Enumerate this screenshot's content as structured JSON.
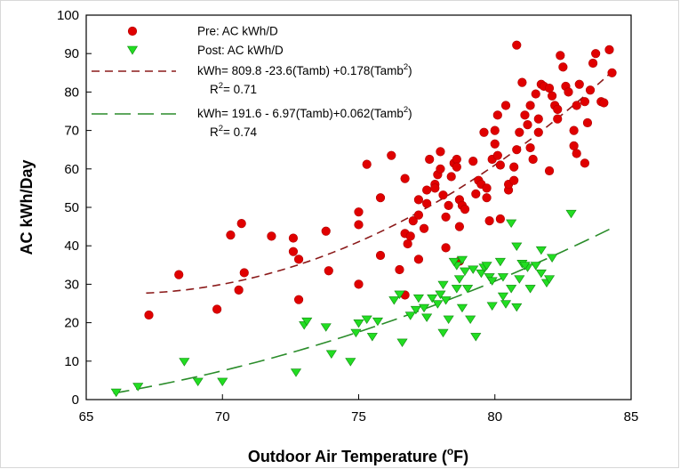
{
  "chart_data": {
    "type": "scatter",
    "title": "",
    "xlabel_text": "Outdoor Air Temperature (",
    "xlabel_sup": "o",
    "xlabel_tail": "F)",
    "ylabel": "AC kWh/Day",
    "xlim": [
      65,
      85
    ],
    "ylim": [
      0,
      100
    ],
    "xticks": [
      65,
      70,
      75,
      80,
      85
    ],
    "yticks": [
      0,
      10,
      20,
      30,
      40,
      50,
      60,
      70,
      80,
      90,
      100
    ],
    "xtick_labels": [
      "65",
      "70",
      "75",
      "80",
      "85"
    ],
    "ytick_labels": [
      "0",
      "10",
      "20",
      "30",
      "40",
      "50",
      "60",
      "70",
      "80",
      "90",
      "100"
    ],
    "grid": false,
    "legend_placement": "top-left",
    "series": [
      {
        "name": "Pre: AC kWh/D",
        "marker": "circle",
        "color": "#e00000",
        "points": [
          [
            67.3,
            22
          ],
          [
            68.4,
            32.5
          ],
          [
            69.8,
            23.5
          ],
          [
            70.3,
            42.8
          ],
          [
            70.6,
            28.5
          ],
          [
            70.7,
            45.8
          ],
          [
            70.8,
            33
          ],
          [
            71.8,
            42.5
          ],
          [
            72.6,
            42
          ],
          [
            72.6,
            38.5
          ],
          [
            72.8,
            36.5
          ],
          [
            72.8,
            26
          ],
          [
            73.8,
            43.8
          ],
          [
            73.9,
            33.5
          ],
          [
            75.0,
            30
          ],
          [
            75.0,
            45.5
          ],
          [
            75.0,
            48.8
          ],
          [
            75.3,
            61.2
          ],
          [
            75.8,
            52.5
          ],
          [
            75.8,
            37.5
          ],
          [
            76.2,
            63.5
          ],
          [
            76.5,
            33.8
          ],
          [
            76.7,
            27.2
          ],
          [
            76.7,
            57.5
          ],
          [
            76.7,
            43.2
          ],
          [
            76.8,
            40.5
          ],
          [
            76.9,
            42.5
          ],
          [
            77.0,
            46.5
          ],
          [
            77.2,
            52
          ],
          [
            77.2,
            48
          ],
          [
            77.2,
            36.5
          ],
          [
            77.4,
            44.5
          ],
          [
            77.5,
            51
          ],
          [
            77.5,
            54.5
          ],
          [
            77.6,
            62.5
          ],
          [
            77.8,
            56
          ],
          [
            77.8,
            55
          ],
          [
            77.9,
            58.5
          ],
          [
            78.0,
            60
          ],
          [
            78.0,
            64.5
          ],
          [
            78.1,
            53.2
          ],
          [
            78.2,
            39.5
          ],
          [
            78.2,
            47.5
          ],
          [
            78.3,
            50.5
          ],
          [
            78.4,
            58
          ],
          [
            78.5,
            61.5
          ],
          [
            78.6,
            62.5
          ],
          [
            78.6,
            60.5
          ],
          [
            78.7,
            36
          ],
          [
            78.7,
            45
          ],
          [
            78.7,
            52
          ],
          [
            78.8,
            50.5
          ],
          [
            78.9,
            49.5
          ],
          [
            79.2,
            62
          ],
          [
            79.3,
            53.5
          ],
          [
            79.4,
            57
          ],
          [
            79.5,
            56
          ],
          [
            79.6,
            69.5
          ],
          [
            79.7,
            52.5
          ],
          [
            79.7,
            55
          ],
          [
            79.8,
            46.5
          ],
          [
            79.9,
            62.5
          ],
          [
            80.0,
            66.5
          ],
          [
            80.0,
            70
          ],
          [
            80.1,
            74
          ],
          [
            80.1,
            63.5
          ],
          [
            80.2,
            61
          ],
          [
            80.2,
            47
          ],
          [
            80.4,
            76.5
          ],
          [
            80.5,
            54.5
          ],
          [
            80.5,
            56
          ],
          [
            80.7,
            57
          ],
          [
            80.7,
            60.5
          ],
          [
            80.8,
            65
          ],
          [
            80.8,
            92.2
          ],
          [
            80.9,
            69.5
          ],
          [
            81.0,
            82.5
          ],
          [
            81.1,
            74
          ],
          [
            81.2,
            71.5
          ],
          [
            81.3,
            76.5
          ],
          [
            81.3,
            65.5
          ],
          [
            81.4,
            62.5
          ],
          [
            81.5,
            79.5
          ],
          [
            81.6,
            73
          ],
          [
            81.6,
            69.5
          ],
          [
            81.7,
            82
          ],
          [
            81.8,
            81.5
          ],
          [
            82.0,
            81
          ],
          [
            82.0,
            59.5
          ],
          [
            82.1,
            79
          ],
          [
            82.2,
            76.5
          ],
          [
            82.3,
            73
          ],
          [
            82.3,
            75.5
          ],
          [
            82.4,
            89.5
          ],
          [
            82.5,
            86.5
          ],
          [
            82.6,
            81.5
          ],
          [
            82.7,
            80
          ],
          [
            82.9,
            70
          ],
          [
            82.9,
            66
          ],
          [
            83.0,
            64
          ],
          [
            83.0,
            76.5
          ],
          [
            83.1,
            82
          ],
          [
            83.3,
            77.5
          ],
          [
            83.3,
            61.5
          ],
          [
            83.4,
            72
          ],
          [
            83.5,
            80.5
          ],
          [
            83.6,
            87.5
          ],
          [
            83.7,
            90
          ],
          [
            83.9,
            77.5
          ],
          [
            84.0,
            77.2
          ],
          [
            84.2,
            91
          ],
          [
            84.3,
            85
          ]
        ]
      },
      {
        "name": "Post: AC kWh/D",
        "marker": "triangle-down",
        "color": "#22dd22",
        "points": [
          [
            66.1,
            2
          ],
          [
            66.9,
            3.5
          ],
          [
            68.6,
            10
          ],
          [
            69.1,
            4.8
          ],
          [
            70.0,
            4.8
          ],
          [
            72.7,
            7.2
          ],
          [
            73.0,
            19.5
          ],
          [
            73.1,
            20.5
          ],
          [
            73.8,
            19
          ],
          [
            74.0,
            12
          ],
          [
            74.7,
            10
          ],
          [
            74.9,
            17.5
          ],
          [
            75.0,
            20
          ],
          [
            75.3,
            21
          ],
          [
            75.5,
            16.5
          ],
          [
            75.7,
            20.5
          ],
          [
            76.3,
            26
          ],
          [
            76.5,
            27.5
          ],
          [
            76.6,
            15
          ],
          [
            76.9,
            22
          ],
          [
            77.1,
            23.5
          ],
          [
            77.4,
            24
          ],
          [
            77.5,
            21.5
          ],
          [
            77.7,
            26.5
          ],
          [
            77.9,
            25
          ],
          [
            78.0,
            27.5
          ],
          [
            78.1,
            30
          ],
          [
            78.1,
            17.5
          ],
          [
            78.2,
            26
          ],
          [
            78.3,
            21
          ],
          [
            78.6,
            29
          ],
          [
            78.6,
            35
          ],
          [
            78.7,
            31.5
          ],
          [
            78.8,
            36.5
          ],
          [
            78.8,
            24
          ],
          [
            78.9,
            33.5
          ],
          [
            79.0,
            29
          ],
          [
            79.1,
            21
          ],
          [
            79.2,
            34
          ],
          [
            79.3,
            16.5
          ],
          [
            79.5,
            33
          ],
          [
            79.6,
            34.5
          ],
          [
            79.7,
            35
          ],
          [
            79.8,
            32
          ],
          [
            79.9,
            31
          ],
          [
            80.2,
            36
          ],
          [
            80.3,
            27
          ],
          [
            80.4,
            25
          ],
          [
            80.6,
            29
          ],
          [
            80.6,
            46
          ],
          [
            80.8,
            40
          ],
          [
            80.9,
            31.5
          ],
          [
            81.0,
            35.5
          ],
          [
            81.2,
            34.5
          ],
          [
            81.3,
            29
          ],
          [
            81.5,
            35
          ],
          [
            81.7,
            33
          ],
          [
            81.7,
            39
          ],
          [
            81.9,
            30.5
          ],
          [
            82.1,
            37
          ],
          [
            82.0,
            31.5
          ],
          [
            82.8,
            48.5
          ],
          [
            80.3,
            32
          ],
          [
            81.1,
            35
          ],
          [
            78.5,
            36
          ],
          [
            79.9,
            24.5
          ],
          [
            77.2,
            26.5
          ],
          [
            80.8,
            24.2
          ]
        ]
      }
    ],
    "fits": [
      {
        "name": "kWh= 809.8 -23.6(Tamb) +0.178(Tamb",
        "sup": "2",
        "tail": ")",
        "r2_prefix": "R",
        "r2_sup": "2",
        "r2_value": "= 0.71",
        "color": "#8b1a1a",
        "dash": "9,6",
        "coef": [
          809.8,
          -23.6,
          0.178
        ],
        "x_range": [
          67.2,
          84.3
        ]
      },
      {
        "name": "kWh= 191.6 - 6.97(Tamb)+0.062(Tamb",
        "sup": "2",
        "tail": ")",
        "r2_prefix": "R",
        "r2_sup": "2",
        "r2_value": "= 0.74",
        "color": "#2a8c2a",
        "dash": "18,8",
        "coef": [
          191.6,
          -6.97,
          0.062
        ],
        "x_range": [
          66.0,
          84.2
        ]
      }
    ]
  }
}
